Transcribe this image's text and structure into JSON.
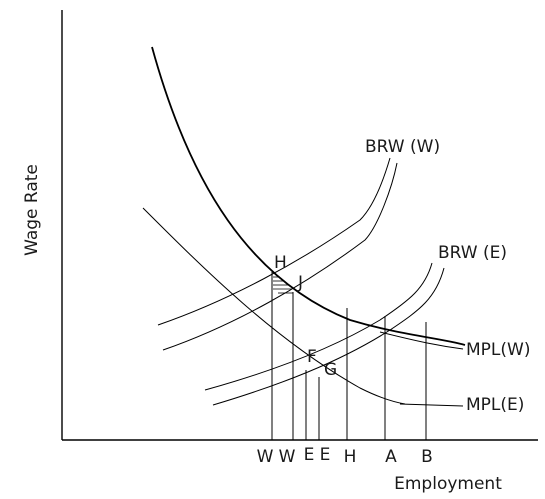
{
  "axes": {
    "ylabel": "Wage Rate",
    "xlabel": "Employment"
  },
  "curves": {
    "brw_w": "BRW (W)",
    "brw_e": "BRW (E)",
    "mpl_w": "MPL(W)",
    "mpl_e": "MPL(E)"
  },
  "points": {
    "h": "H",
    "j": "J",
    "f": "F",
    "g": "G"
  },
  "ticks": [
    "W",
    "W",
    "E",
    "E",
    "H",
    "A",
    "B"
  ]
}
